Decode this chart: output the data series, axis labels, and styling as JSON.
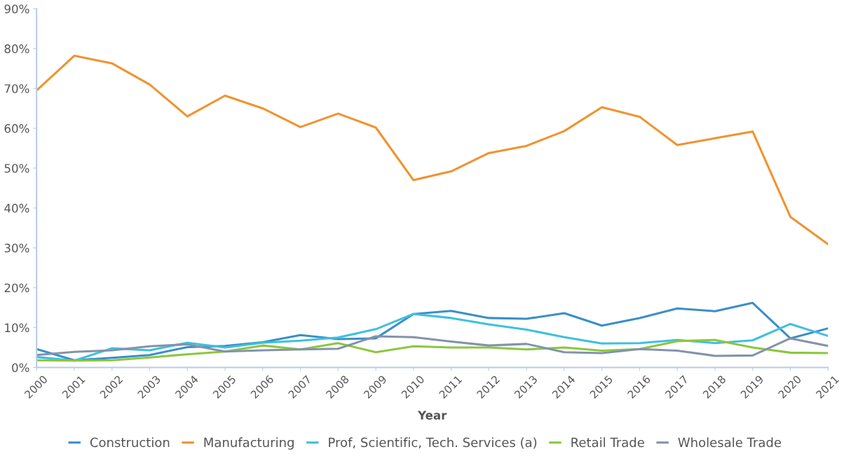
{
  "chart_data": {
    "type": "line",
    "xlabel": "Year",
    "categories": [
      "2000",
      "2001",
      "2002",
      "2003",
      "2004",
      "2005",
      "2006",
      "2007",
      "2008",
      "2009",
      "2010",
      "2011",
      "2012",
      "2013",
      "2014",
      "2015",
      "2016",
      "2017",
      "2018",
      "2019",
      "2020",
      "2021"
    ],
    "ylim": [
      0,
      90
    ],
    "yticks": [
      {
        "value": 0,
        "label": "0%"
      },
      {
        "value": 10,
        "label": "10%"
      },
      {
        "value": 20,
        "label": "20%"
      },
      {
        "value": 30,
        "label": "30%"
      },
      {
        "value": 40,
        "label": "40%"
      },
      {
        "value": 50,
        "label": "50%"
      },
      {
        "value": 60,
        "label": "60%"
      },
      {
        "value": 70,
        "label": "70%"
      },
      {
        "value": 80,
        "label": "80%"
      },
      {
        "value": 90,
        "label": "90%"
      }
    ],
    "grid": false,
    "legend": "bottom",
    "marker": "none",
    "line_style": "solid",
    "series": [
      {
        "name": "Construction",
        "color": "#3a8fc9",
        "values": [
          4.6,
          1.8,
          2.4,
          3.1,
          5.1,
          5.4,
          6.3,
          8.1,
          7.1,
          7.3,
          13.4,
          14.2,
          12.4,
          12.2,
          13.6,
          10.5,
          12.4,
          14.8,
          14.1,
          16.2,
          7.3,
          9.8
        ]
      },
      {
        "name": "Manufacturing",
        "color": "#f0932f",
        "values": [
          69.5,
          78.2,
          76.3,
          71,
          63,
          68.2,
          65,
          60.3,
          63.7,
          60.2,
          47,
          49.2,
          53.8,
          55.6,
          59.3,
          65.3,
          62.9,
          55.8,
          57.5,
          59.2,
          37.8,
          30.9
        ]
      },
      {
        "name": "Prof, Scientific, Tech. Services (a)",
        "color": "#3fc0dc",
        "values": [
          2.6,
          1.7,
          4.8,
          4.3,
          6.2,
          5,
          6.2,
          6.7,
          7.5,
          9.6,
          13.4,
          12.4,
          10.8,
          9.5,
          7.6,
          6,
          6.1,
          6.9,
          6.1,
          6.8,
          10.9,
          7.9
        ]
      },
      {
        "name": "Retail Trade",
        "color": "#8dc63f",
        "values": [
          1.8,
          1.7,
          1.8,
          2.5,
          3.3,
          4,
          5.5,
          4.5,
          6.1,
          3.8,
          5.3,
          5,
          5,
          4.5,
          5,
          4.2,
          4.6,
          6.6,
          6.9,
          5,
          3.7,
          3.6
        ]
      },
      {
        "name": "Wholesale Trade",
        "color": "#8393ab",
        "values": [
          3.1,
          3.9,
          4.3,
          5.3,
          5.8,
          4,
          4.3,
          4.5,
          4.7,
          7.8,
          7.6,
          6.5,
          5.5,
          5.9,
          3.8,
          3.6,
          4.6,
          4.2,
          2.9,
          3,
          7.3,
          5.4
        ]
      }
    ]
  }
}
